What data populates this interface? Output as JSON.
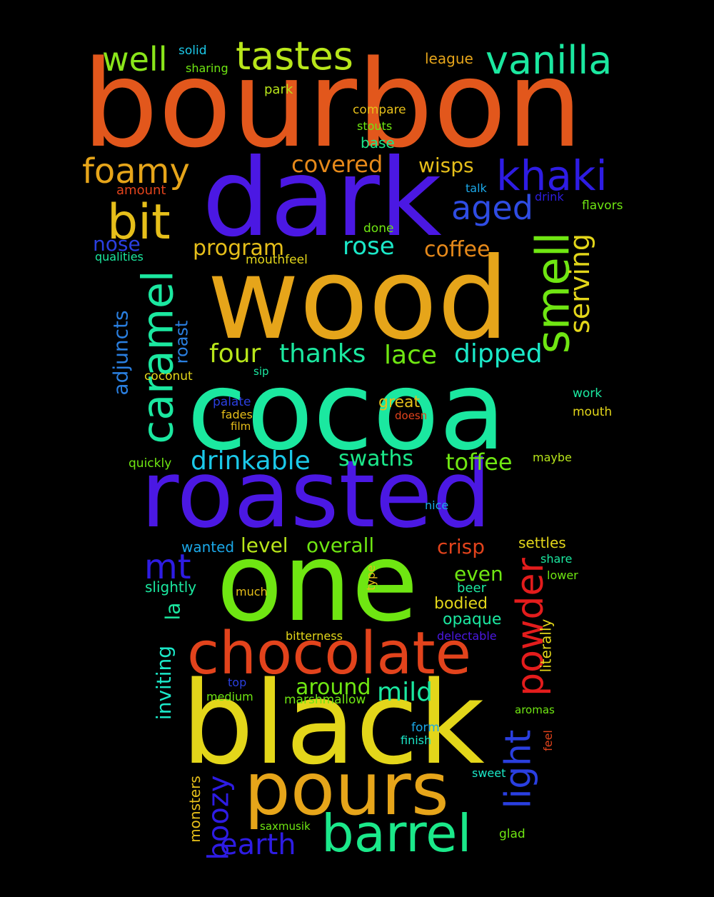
{
  "background": "#000000",
  "words": [
    {
      "id": "bourbon",
      "text": "bourbon",
      "color": "#E2571C"
    },
    {
      "id": "dark",
      "text": "dark",
      "color": "#4B18E3"
    },
    {
      "id": "wood",
      "text": "wood",
      "color": "#E6A51A"
    },
    {
      "id": "cocoa",
      "text": "cocoa",
      "color": "#1BE8A0"
    },
    {
      "id": "roasted",
      "text": "roasted",
      "color": "#4B18E3"
    },
    {
      "id": "one",
      "text": "one",
      "color": "#6FE612"
    },
    {
      "id": "black",
      "text": "black",
      "color": "#E3D61A"
    },
    {
      "id": "chocolate",
      "text": "chocolate",
      "color": "#E2431C"
    },
    {
      "id": "pours",
      "text": "pours",
      "color": "#E6A51A"
    },
    {
      "id": "barrel",
      "text": "barrel",
      "color": "#1BE88A"
    },
    {
      "id": "tastes",
      "text": "tastes",
      "color": "#B8E61A"
    },
    {
      "id": "vanilla",
      "text": "vanilla",
      "color": "#1BE8A0"
    },
    {
      "id": "well",
      "text": "well",
      "color": "#8AE61A"
    },
    {
      "id": "khaki",
      "text": "khaki",
      "color": "#2E1CE3"
    },
    {
      "id": "foamy",
      "text": "foamy",
      "color": "#E6A51A"
    },
    {
      "id": "bit",
      "text": "bit",
      "color": "#E6BF1A"
    },
    {
      "id": "aged",
      "text": "aged",
      "color": "#2F4CE3"
    },
    {
      "id": "smell",
      "text": "smell",
      "color": "#6FE612"
    },
    {
      "id": "caramel",
      "text": "caramel",
      "color": "#1BE8A0"
    },
    {
      "id": "serving",
      "text": "serving",
      "color": "#E3D61A"
    },
    {
      "id": "powder",
      "text": "powder",
      "color": "#E31C1C"
    },
    {
      "id": "light",
      "text": "light",
      "color": "#2A3FE0"
    },
    {
      "id": "mt",
      "text": "mt",
      "color": "#2E1CE3"
    },
    {
      "id": "boozy",
      "text": "boozy",
      "color": "#2E1CE3"
    },
    {
      "id": "earth",
      "text": "earth",
      "color": "#2E1CE3"
    },
    {
      "id": "covered",
      "text": "covered",
      "color": "#E6891A"
    },
    {
      "id": "wisps",
      "text": "wisps",
      "color": "#E6BF1A"
    },
    {
      "id": "rose",
      "text": "rose",
      "color": "#1BE8C8"
    },
    {
      "id": "coffee",
      "text": "coffee",
      "color": "#E6891A"
    },
    {
      "id": "program",
      "text": "program",
      "color": "#E6BF1A"
    },
    {
      "id": "nose",
      "text": "nose",
      "color": "#2A3FE0"
    },
    {
      "id": "four",
      "text": "four",
      "color": "#B8E61A"
    },
    {
      "id": "thanks",
      "text": "thanks",
      "color": "#1BE8A0"
    },
    {
      "id": "lace",
      "text": "lace",
      "color": "#6FE612"
    },
    {
      "id": "dipped",
      "text": "dipped",
      "color": "#1BE8C8"
    },
    {
      "id": "drinkable",
      "text": "drinkable",
      "color": "#1BC8E8"
    },
    {
      "id": "swaths",
      "text": "swaths",
      "color": "#1BE88A"
    },
    {
      "id": "toffee",
      "text": "toffee",
      "color": "#6FE612"
    },
    {
      "id": "adjuncts",
      "text": "adjuncts",
      "color": "#2A7FE0"
    },
    {
      "id": "roast",
      "text": "roast",
      "color": "#2A7FE0"
    },
    {
      "id": "level",
      "text": "level",
      "color": "#B8E61A"
    },
    {
      "id": "overall",
      "text": "overall",
      "color": "#6FE612"
    },
    {
      "id": "crisp",
      "text": "crisp",
      "color": "#E2431C"
    },
    {
      "id": "settles",
      "text": "settles",
      "color": "#E3D61A"
    },
    {
      "id": "even",
      "text": "even",
      "color": "#6FE612"
    },
    {
      "id": "bodied",
      "text": "bodied",
      "color": "#E3D61A"
    },
    {
      "id": "opaque",
      "text": "opaque",
      "color": "#1BE8A0"
    },
    {
      "id": "around",
      "text": "around",
      "color": "#6FE612"
    },
    {
      "id": "mild",
      "text": "mild",
      "color": "#1BE8A0"
    },
    {
      "id": "inviting",
      "text": "inviting",
      "color": "#1BE8C8"
    },
    {
      "id": "la",
      "text": "la",
      "color": "#1BE8A0"
    },
    {
      "id": "great",
      "text": "great",
      "color": "#E6BF1A"
    },
    {
      "id": "wanted",
      "text": "wanted",
      "color": "#1BA8E8"
    },
    {
      "id": "slightly",
      "text": "slightly",
      "color": "#1BE8A0"
    },
    {
      "id": "much",
      "text": "much",
      "color": "#E6BF1A"
    },
    {
      "id": "beer",
      "text": "beer",
      "color": "#1BE8A0"
    },
    {
      "id": "type",
      "text": "type",
      "color": "#E6BF1A"
    },
    {
      "id": "literally",
      "text": "literally",
      "color": "#E3D61A"
    },
    {
      "id": "monsters",
      "text": "monsters",
      "color": "#E6BF1A"
    },
    {
      "id": "solid",
      "text": "solid",
      "color": "#1BC8E8"
    },
    {
      "id": "sharing",
      "text": "sharing",
      "color": "#6FE612"
    },
    {
      "id": "league",
      "text": "league",
      "color": "#E6A51A"
    },
    {
      "id": "park",
      "text": "park",
      "color": "#B8E61A"
    },
    {
      "id": "compare",
      "text": "compare",
      "color": "#E6BF1A"
    },
    {
      "id": "stouts",
      "text": "stouts",
      "color": "#6FE612"
    },
    {
      "id": "base",
      "text": "base",
      "color": "#1BE88A"
    },
    {
      "id": "amount",
      "text": "amount",
      "color": "#E2431C"
    },
    {
      "id": "talk",
      "text": "talk",
      "color": "#1BA8E8"
    },
    {
      "id": "drink",
      "text": "drink",
      "color": "#2E1CE3"
    },
    {
      "id": "flavors",
      "text": "flavors",
      "color": "#6FE612"
    },
    {
      "id": "done",
      "text": "done",
      "color": "#6FE612"
    },
    {
      "id": "qualities",
      "text": "qualities",
      "color": "#1BE8A0"
    },
    {
      "id": "mouthfeel",
      "text": "mouthfeel",
      "color": "#E3D61A"
    },
    {
      "id": "coconut",
      "text": "coconut",
      "color": "#E3D61A"
    },
    {
      "id": "sip",
      "text": "sip",
      "color": "#1BE8A0"
    },
    {
      "id": "work",
      "text": "work",
      "color": "#1BE8A0"
    },
    {
      "id": "palate",
      "text": "palate",
      "color": "#2A3FE0"
    },
    {
      "id": "fades",
      "text": "fades",
      "color": "#E6BF1A"
    },
    {
      "id": "film",
      "text": "film",
      "color": "#E6BF1A"
    },
    {
      "id": "doesn",
      "text": "doesn",
      "color": "#E2431C"
    },
    {
      "id": "mouth",
      "text": "mouth",
      "color": "#E3D61A"
    },
    {
      "id": "quickly",
      "text": "quickly",
      "color": "#6FE612"
    },
    {
      "id": "maybe",
      "text": "maybe",
      "color": "#B8E61A"
    },
    {
      "id": "nice",
      "text": "nice",
      "color": "#1BA8E8"
    },
    {
      "id": "share",
      "text": "share",
      "color": "#1BE8A0"
    },
    {
      "id": "lower",
      "text": "lower",
      "color": "#6FE612"
    },
    {
      "id": "bitterness",
      "text": "bitterness",
      "color": "#E3D61A"
    },
    {
      "id": "delectable",
      "text": "delectable",
      "color": "#4B18E3"
    },
    {
      "id": "top",
      "text": "top",
      "color": "#2A3FE0"
    },
    {
      "id": "medium",
      "text": "medium",
      "color": "#6FE612"
    },
    {
      "id": "marshmallow",
      "text": "marshmallow",
      "color": "#6FE612"
    },
    {
      "id": "aromas",
      "text": "aromas",
      "color": "#6FE612"
    },
    {
      "id": "form",
      "text": "form",
      "color": "#1BA8E8"
    },
    {
      "id": "finish",
      "text": "finish",
      "color": "#1BE8C8"
    },
    {
      "id": "feel",
      "text": "feel",
      "color": "#E2431C"
    },
    {
      "id": "sweet",
      "text": "sweet",
      "color": "#1BE8C8"
    },
    {
      "id": "saxmusik",
      "text": "saxmusik",
      "color": "#6FE612"
    },
    {
      "id": "glad",
      "text": "glad",
      "color": "#6FE612"
    }
  ]
}
